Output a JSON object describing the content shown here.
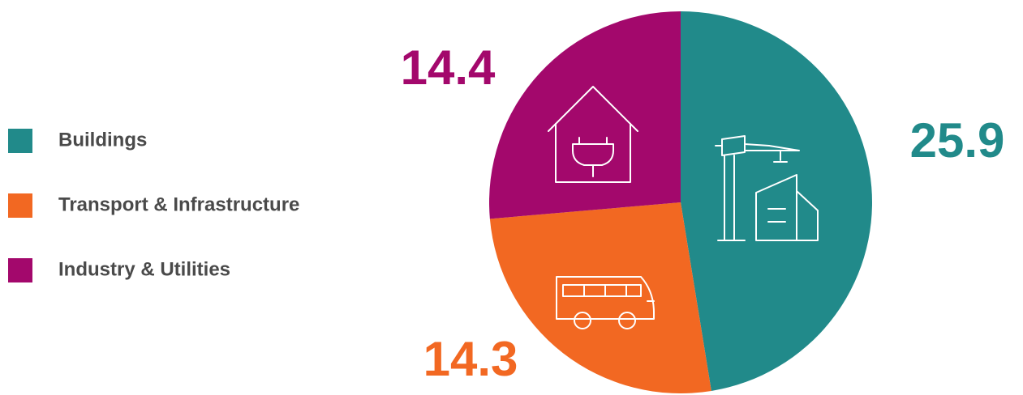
{
  "chart_data": {
    "type": "pie",
    "categories": [
      "Buildings",
      "Transport & Infrastructure",
      "Industry & Utilities"
    ],
    "values": [
      25.9,
      14.3,
      14.4
    ],
    "colors": [
      "#218a8a",
      "#f26822",
      "#a3086c"
    ]
  }
}
